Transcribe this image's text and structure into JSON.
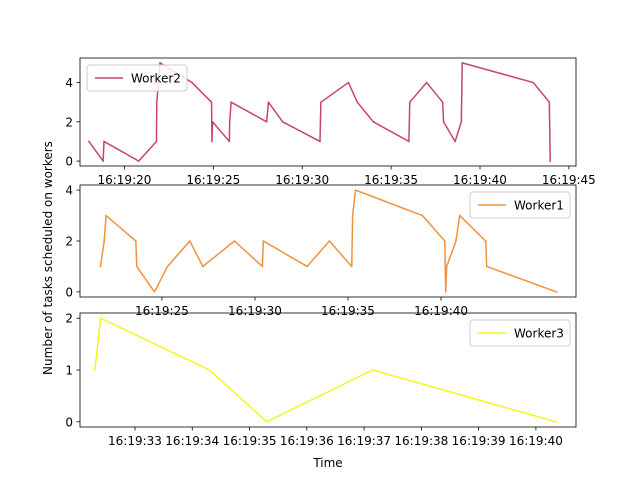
{
  "figure": {
    "ylabel": "Number of tasks scheduled on workers",
    "xlabel": "Time"
  },
  "chart_data": [
    {
      "type": "line",
      "series": [
        {
          "name": "Worker2",
          "color": "#c8436f",
          "points": [
            [
              "16:19:18.000",
              1
            ],
            [
              "16:19:18.800",
              0
            ],
            [
              "16:19:18.850",
              1
            ],
            [
              "16:19:20.800",
              0
            ],
            [
              "16:19:21.800",
              1
            ],
            [
              "16:19:21.820",
              3
            ],
            [
              "16:19:22.000",
              5
            ],
            [
              "16:19:23.800",
              4
            ],
            [
              "16:19:24.900",
              3
            ],
            [
              "16:19:24.920",
              1
            ],
            [
              "16:19:24.960",
              2
            ],
            [
              "16:19:25.900",
              1
            ],
            [
              "16:19:25.920",
              2
            ],
            [
              "16:19:26.000",
              3
            ],
            [
              "16:19:28.000",
              2
            ],
            [
              "16:19:28.100",
              3
            ],
            [
              "16:19:28.900",
              2
            ],
            [
              "16:19:31.000",
              1
            ],
            [
              "16:19:31.050",
              3
            ],
            [
              "16:19:32.600",
              4
            ],
            [
              "16:19:33.100",
              3
            ],
            [
              "16:19:34.000",
              2
            ],
            [
              "16:19:36.000",
              1
            ],
            [
              "16:19:36.050",
              3
            ],
            [
              "16:19:37.000",
              4
            ],
            [
              "16:19:37.900",
              3
            ],
            [
              "16:19:37.950",
              2
            ],
            [
              "16:19:38.600",
              1
            ],
            [
              "16:19:38.950",
              2
            ],
            [
              "16:19:39.000",
              5
            ],
            [
              "16:19:43.000",
              4
            ],
            [
              "16:19:43.900",
              3
            ],
            [
              "16:19:43.950",
              0
            ]
          ]
        }
      ],
      "xlim": [
        "16:19:17.5",
        "16:19:45.4"
      ],
      "ylim": [
        -0.25,
        5.25
      ],
      "xticks": [
        "16:19:20",
        "16:19:25",
        "16:19:30",
        "16:19:35",
        "16:19:40",
        "16:19:45"
      ],
      "yticks": [
        0,
        2,
        4
      ],
      "legend": "top-left"
    },
    {
      "type": "line",
      "series": [
        {
          "name": "Worker1",
          "color": "#f2913b",
          "points": [
            [
              "16:19:21.700",
              1
            ],
            [
              "16:19:21.900",
              2
            ],
            [
              "16:19:22.000",
              3
            ],
            [
              "16:19:23.600",
              2
            ],
            [
              "16:19:23.650",
              1
            ],
            [
              "16:19:24.600",
              0
            ],
            [
              "16:19:25.300",
              1
            ],
            [
              "16:19:26.500",
              2
            ],
            [
              "16:19:27.200",
              1
            ],
            [
              "16:19:28.900",
              2
            ],
            [
              "16:19:30.400",
              1
            ],
            [
              "16:19:30.450",
              2
            ],
            [
              "16:19:32.800",
              1
            ],
            [
              "16:19:34.000",
              2
            ],
            [
              "16:19:35.200",
              1
            ],
            [
              "16:19:35.250",
              3
            ],
            [
              "16:19:35.400",
              4
            ],
            [
              "16:19:39.000",
              3
            ],
            [
              "16:19:40.200",
              2
            ],
            [
              "16:19:40.250",
              0
            ],
            [
              "16:19:40.300",
              1
            ],
            [
              "16:19:40.800",
              2
            ],
            [
              "16:19:41.000",
              3
            ],
            [
              "16:19:42.400",
              2
            ],
            [
              "16:19:42.450",
              1
            ],
            [
              "16:19:46.200",
              0
            ]
          ]
        }
      ],
      "xlim": [
        "16:19:20.6",
        "16:19:47.25"
      ],
      "ylim": [
        -0.2,
        4.2
      ],
      "xticks": [
        "16:19:25",
        "16:19:30",
        "16:19:35",
        "16:19:40"
      ],
      "yticks": [
        0,
        2,
        4
      ],
      "legend": "top-right"
    },
    {
      "type": "line",
      "series": [
        {
          "name": "Worker3",
          "color": "#f5f522",
          "points": [
            [
              "16:19:32.3",
              1
            ],
            [
              "16:19:32.4",
              2
            ],
            [
              "16:19:34.3",
              1
            ],
            [
              "16:19:35.3",
              0
            ],
            [
              "16:19:37.15",
              1
            ],
            [
              "16:19:40.35",
              0
            ]
          ]
        }
      ],
      "xlim": [
        "16:19:32.04",
        "16:19:40.70"
      ],
      "ylim": [
        -0.1,
        2.1
      ],
      "xticks": [
        "16:19:33",
        "16:19:34",
        "16:19:35",
        "16:19:36",
        "16:19:37",
        "16:19:38",
        "16:19:39",
        "16:19:40"
      ],
      "yticks": [
        0,
        1,
        2
      ],
      "legend": "top-right"
    }
  ]
}
